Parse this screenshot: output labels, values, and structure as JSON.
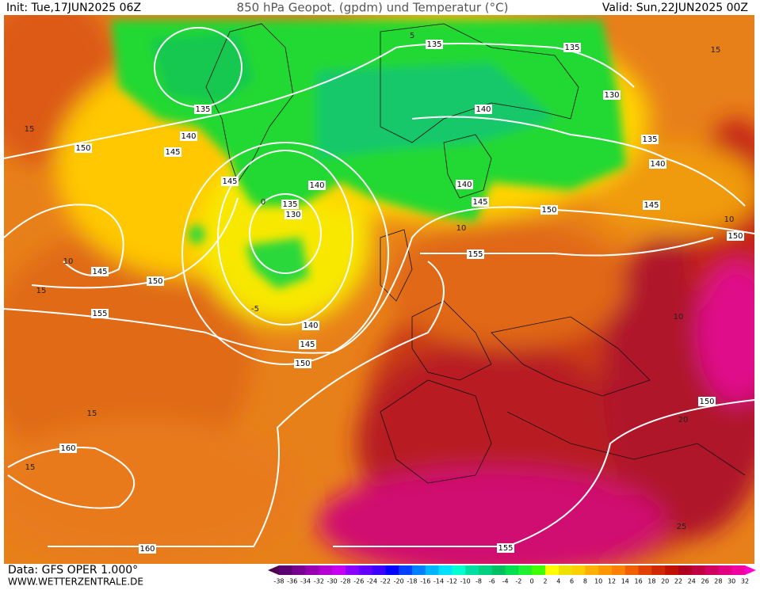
{
  "header": {
    "init": "Init: Tue,17JUN2025 06Z",
    "title": "850 hPa Geopot. (gpdm) und Temperatur (°C)",
    "valid": "Valid: Sun,22JUN2025 00Z"
  },
  "footer": {
    "source": "Data: GFS OPER 1.000°",
    "site": "WWW.WETTERZENTRALE.DE"
  },
  "colorbar": {
    "labels": [
      "-38",
      "-36",
      "-34",
      "-32",
      "-30",
      "-28",
      "-26",
      "-24",
      "-22",
      "-20",
      "-18",
      "-16",
      "-14",
      "-12",
      "-10",
      "-8",
      "-6",
      "-4",
      "-2",
      "0",
      "2",
      "4",
      "6",
      "8",
      "10",
      "12",
      "14",
      "16",
      "18",
      "20",
      "22",
      "24",
      "26",
      "28",
      "30",
      "32"
    ]
  },
  "geopotential_labels": [
    "135",
    "135",
    "130",
    "135",
    "140",
    "145",
    "150",
    "150",
    "140",
    "135",
    "140",
    "150",
    "145",
    "145",
    "140",
    "135",
    "130",
    "140",
    "145",
    "150",
    "155",
    "145",
    "150",
    "155",
    "140",
    "145",
    "150",
    "160",
    "160",
    "155"
  ],
  "isotherm_labels": [
    "15",
    "15",
    "10",
    "15",
    "15",
    "15",
    "-5",
    "0",
    "10",
    "10",
    "10",
    "20",
    "25",
    "5"
  ]
}
